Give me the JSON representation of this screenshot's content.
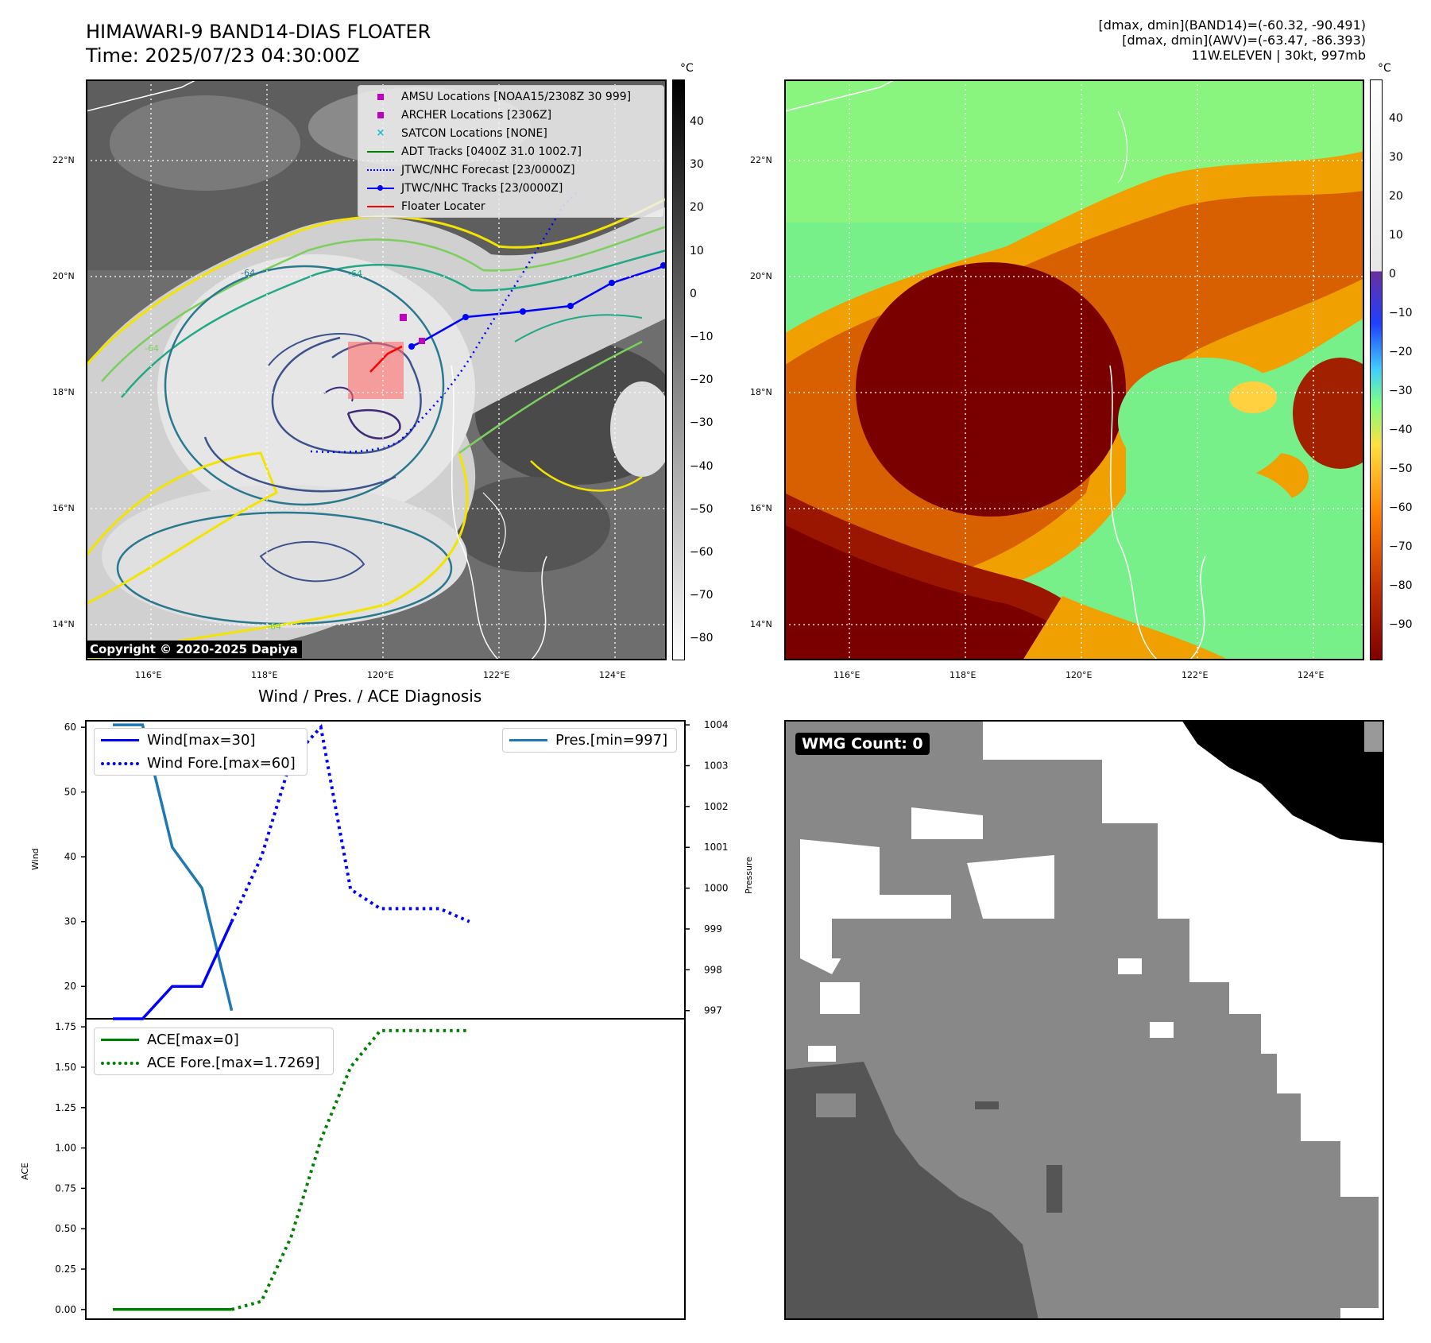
{
  "header": {
    "title": "HIMAWARI-9 BAND14-DIAS FLOATER",
    "time": "Time: 2025/07/23 04:30:00Z"
  },
  "stats": {
    "line1": "[dmax, dmin](BAND14)=(-60.32, -90.491)",
    "line2": "[dmax, dmin](AWV)=(-63.47, -86.393)",
    "line3": "11W.ELEVEN | 30kt, 997mb"
  },
  "maps": {
    "lat_labels": [
      "22°N",
      "20°N",
      "18°N",
      "16°N",
      "14°N"
    ],
    "lon_labels": [
      "116°E",
      "118°E",
      "120°E",
      "122°E",
      "124°E"
    ],
    "contour_labels": [
      "-64",
      "-64",
      "-64",
      "-64"
    ],
    "copyright": "Copyright © 2020-2025 Dapiya",
    "legend": [
      {
        "label": "AMSU Locations [NOAA15/2308Z 30 999]",
        "color": "#c000c0",
        "icon": "square-marker"
      },
      {
        "label": "ARCHER Locations [2306Z]",
        "color": "#c000c0",
        "icon": "square-marker"
      },
      {
        "label": "SATCON Locations [NONE]",
        "color": "#17becf",
        "icon": "x-marker"
      },
      {
        "label": "ADT Tracks [0400Z 31.0 1002.7]",
        "color": "#008000",
        "icon": "solid-line"
      },
      {
        "label": "JTWC/NHC Forecast [23/0000Z]",
        "color": "#0000ff",
        "icon": "dotted-line"
      },
      {
        "label": "JTWC/NHC Tracks [23/0000Z]",
        "color": "#0000ff",
        "icon": "line-dot"
      },
      {
        "label": "Floater Locater",
        "color": "#ff0000",
        "icon": "solid-line"
      }
    ],
    "colorbar_gray": {
      "unit": "°C",
      "ticks": [
        "40",
        "30",
        "20",
        "10",
        "0",
        "−10",
        "−20",
        "−30",
        "−40",
        "−50",
        "−60",
        "−70",
        "−80"
      ]
    },
    "colorbar_color": {
      "unit": "°C",
      "ticks": [
        "40",
        "30",
        "20",
        "10",
        "0",
        "−10",
        "−20",
        "−30",
        "−40",
        "−50",
        "−60",
        "−70",
        "−80",
        "−90"
      ]
    }
  },
  "wmg": {
    "label": "WMG Count: 0"
  },
  "chart_data": [
    {
      "type": "line",
      "title": "Wind / Pres. / ACE Diagnosis",
      "ylabel": "Wind",
      "y2label": "Pressure",
      "ylim": [
        15,
        61
      ],
      "y2lim": [
        996.8,
        1004.1
      ],
      "y_ticks": [
        "60",
        "50",
        "40",
        "30",
        "20"
      ],
      "y2_ticks": [
        "1004",
        "1003",
        "1002",
        "1001",
        "1000",
        "999",
        "998",
        "997"
      ],
      "series": [
        {
          "name": "Wind[max=30]",
          "x": [
            0,
            1,
            2,
            3,
            4
          ],
          "values": [
            15,
            15,
            20,
            20,
            30
          ],
          "color": "#0000ff",
          "style": "solid"
        },
        {
          "name": "Wind Fore.[max=60]",
          "x": [
            4,
            5,
            6,
            7,
            8,
            9,
            10,
            11,
            12
          ],
          "values": [
            30,
            40,
            55,
            60,
            35,
            32,
            32,
            32,
            30
          ],
          "color": "#0000ff",
          "style": "dotted"
        },
        {
          "name": "Pres.[min=997]",
          "x": [
            0,
            1,
            2,
            3,
            4
          ],
          "values": [
            1004,
            1004,
            1001,
            1000,
            997
          ],
          "color": "#1f77b4",
          "style": "solid",
          "axis": "right"
        }
      ]
    },
    {
      "type": "line",
      "ylabel": "ACE",
      "ylim": [
        -0.06,
        1.8
      ],
      "y_ticks": [
        "1.75",
        "1.50",
        "1.25",
        "1.00",
        "0.75",
        "0.50",
        "0.25",
        "0.00"
      ],
      "series": [
        {
          "name": "ACE[max=0]",
          "x": [
            0,
            4
          ],
          "values": [
            0,
            0
          ],
          "color": "#008000",
          "style": "solid"
        },
        {
          "name": "ACE Fore.[max=1.7269]",
          "x": [
            4,
            5,
            6,
            7,
            8,
            9,
            10,
            11,
            12
          ],
          "values": [
            0,
            0.05,
            0.45,
            1.05,
            1.5,
            1.7269,
            1.7269,
            1.7269,
            1.7269
          ],
          "color": "#008000",
          "style": "dotted"
        }
      ]
    }
  ]
}
